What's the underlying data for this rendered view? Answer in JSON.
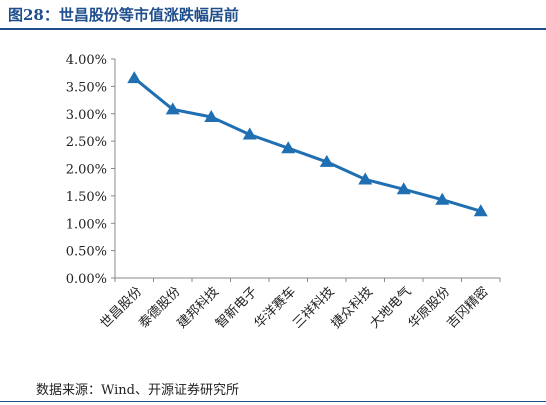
{
  "header": {
    "title": "图28：世昌股份等市值涨跌幅居前"
  },
  "footer": {
    "source": "数据来源：Wind、开源证券研究所"
  },
  "chart_data": {
    "type": "line",
    "title": "",
    "xlabel": "",
    "ylabel": "",
    "categories": [
      "世昌股份",
      "泰德股份",
      "建邦科技",
      "智新电子",
      "华洋赛车",
      "三祥科技",
      "捷众科技",
      "大地电气",
      "华原股份",
      "吉冈精密"
    ],
    "series": [
      {
        "values": [
          3.65,
          3.08,
          2.94,
          2.62,
          2.37,
          2.12,
          1.8,
          1.62,
          1.43,
          1.22
        ],
        "color": "#1f6fb2",
        "marker": "triangle"
      }
    ],
    "yticks": [
      "0.00%",
      "0.50%",
      "1.00%",
      "1.50%",
      "2.00%",
      "2.50%",
      "3.00%",
      "3.50%",
      "4.00%"
    ],
    "ylim": [
      0,
      4
    ],
    "grid": false,
    "legend": "none"
  }
}
